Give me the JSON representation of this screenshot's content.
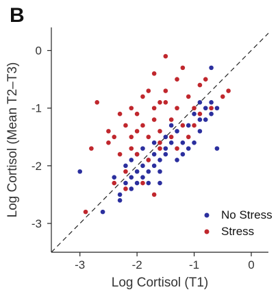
{
  "panel_label": "B",
  "chart_data": {
    "type": "scatter",
    "title": "",
    "xlabel": "Log Cortisol (T1)",
    "ylabel": "Log Cortisol (Mean T2–T3)",
    "xlim": [
      -3.5,
      0.3
    ],
    "ylim": [
      -3.5,
      0.4
    ],
    "xticks": [
      -3,
      -2,
      -1,
      0
    ],
    "yticks": [
      0,
      -1,
      -2,
      -3
    ],
    "identity_line": true,
    "grid": false,
    "legend_position": "bottom-right",
    "series": [
      {
        "name": "No Stress",
        "color": "#2b2f9e",
        "points": [
          [
            -3.0,
            -2.1
          ],
          [
            -2.6,
            -2.8
          ],
          [
            -2.3,
            -2.6
          ],
          [
            -2.3,
            -2.5
          ],
          [
            -2.2,
            -2.3
          ],
          [
            -2.1,
            -2.4
          ],
          [
            -2.1,
            -2.2
          ],
          [
            -2.0,
            -2.3
          ],
          [
            -2.0,
            -2.1
          ],
          [
            -1.9,
            -2.2
          ],
          [
            -1.9,
            -2.0
          ],
          [
            -1.8,
            -2.3
          ],
          [
            -1.8,
            -2.1
          ],
          [
            -1.7,
            -2.0
          ],
          [
            -1.7,
            -1.8
          ],
          [
            -1.6,
            -2.1
          ],
          [
            -1.6,
            -1.9
          ],
          [
            -1.5,
            -1.8
          ],
          [
            -1.5,
            -1.7
          ],
          [
            -1.5,
            -1.5
          ],
          [
            -1.4,
            -1.6
          ],
          [
            -1.3,
            -1.9
          ],
          [
            -1.3,
            -1.4
          ],
          [
            -1.2,
            -1.8
          ],
          [
            -1.2,
            -1.6
          ],
          [
            -1.1,
            -1.7
          ],
          [
            -1.1,
            -1.3
          ],
          [
            -1.0,
            -1.6
          ],
          [
            -1.0,
            -1.1
          ],
          [
            -0.9,
            -1.2
          ],
          [
            -0.9,
            -0.9
          ],
          [
            -0.8,
            -1.0
          ],
          [
            -0.8,
            -1.2
          ],
          [
            -0.7,
            -0.3
          ],
          [
            -0.7,
            -0.9
          ],
          [
            -0.7,
            -1.1
          ],
          [
            -2.4,
            -2.2
          ],
          [
            -2.2,
            -2.0
          ],
          [
            -1.9,
            -1.7
          ],
          [
            -1.7,
            -1.6
          ],
          [
            -1.6,
            -2.3
          ],
          [
            -1.4,
            -1.3
          ],
          [
            -2.0,
            -1.8
          ],
          [
            -1.8,
            -1.9
          ],
          [
            -0.6,
            -1.0
          ],
          [
            -0.9,
            -1.4
          ],
          [
            -0.6,
            -1.7
          ],
          [
            -2.1,
            -1.9
          ]
        ]
      },
      {
        "name": "Stress",
        "color": "#c0272d",
        "points": [
          [
            -2.9,
            -2.8
          ],
          [
            -2.8,
            -1.7
          ],
          [
            -2.7,
            -0.9
          ],
          [
            -2.5,
            -1.6
          ],
          [
            -2.5,
            -1.4
          ],
          [
            -2.4,
            -1.5
          ],
          [
            -2.3,
            -1.8
          ],
          [
            -2.3,
            -1.1
          ],
          [
            -2.2,
            -1.3
          ],
          [
            -2.2,
            -2.4
          ],
          [
            -2.1,
            -1.7
          ],
          [
            -2.1,
            -1.0
          ],
          [
            -2.0,
            -1.1
          ],
          [
            -2.0,
            -1.4
          ],
          [
            -2.0,
            -1.8
          ],
          [
            -1.9,
            -1.3
          ],
          [
            -1.9,
            -0.8
          ],
          [
            -1.8,
            -0.7
          ],
          [
            -1.8,
            -1.5
          ],
          [
            -1.8,
            -1.9
          ],
          [
            -1.7,
            -0.4
          ],
          [
            -1.7,
            -1.0
          ],
          [
            -1.7,
            -1.2
          ],
          [
            -1.6,
            -0.9
          ],
          [
            -1.6,
            -1.4
          ],
          [
            -1.6,
            -1.7
          ],
          [
            -1.5,
            -0.7
          ],
          [
            -1.5,
            -0.1
          ],
          [
            -1.5,
            -0.9
          ],
          [
            -1.4,
            -1.2
          ],
          [
            -1.4,
            -1.5
          ],
          [
            -1.3,
            -0.5
          ],
          [
            -1.3,
            -1.0
          ],
          [
            -1.2,
            -0.3
          ],
          [
            -1.2,
            -1.3
          ],
          [
            -1.1,
            -0.8
          ],
          [
            -1.1,
            -1.5
          ],
          [
            -1.0,
            -1.3
          ],
          [
            -0.9,
            -0.6
          ],
          [
            -0.8,
            -0.5
          ],
          [
            -0.7,
            -1.0
          ],
          [
            -0.5,
            -0.8
          ],
          [
            -0.4,
            -0.7
          ],
          [
            -2.2,
            -2.1
          ],
          [
            -1.9,
            -2.3
          ],
          [
            -1.7,
            -2.5
          ],
          [
            -2.1,
            -1.5
          ],
          [
            -1.0,
            -1.0
          ],
          [
            -2.4,
            -2.3
          ],
          [
            -1.6,
            -1.6
          ],
          [
            -1.3,
            -1.7
          ],
          [
            -0.9,
            -1.1
          ]
        ]
      }
    ]
  }
}
